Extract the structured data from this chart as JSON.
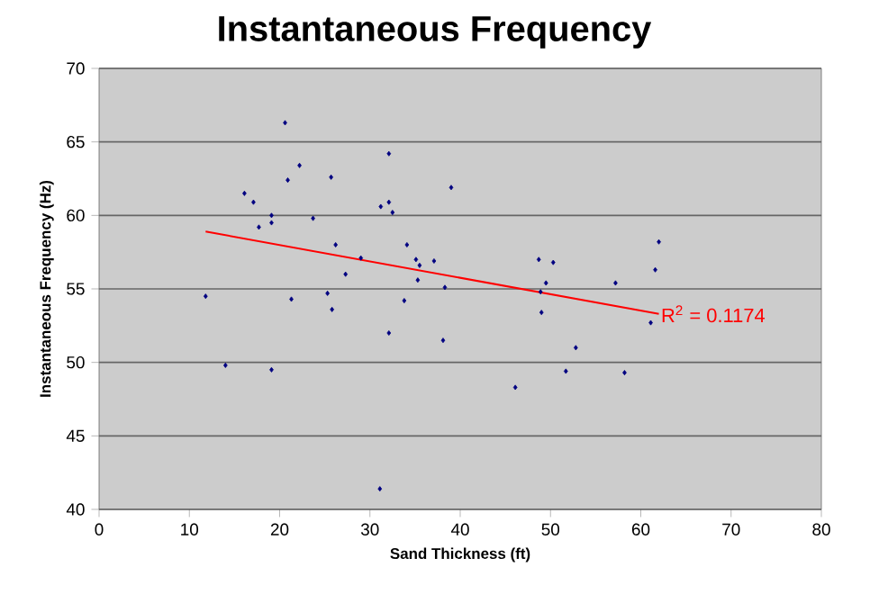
{
  "chart_data": {
    "type": "scatter",
    "title": "Instantaneous Frequency",
    "xlabel": "Sand Thickness (ft)",
    "ylabel": "Instantaneous Frequency (Hz)",
    "xlim": [
      0,
      80
    ],
    "xticks": [
      0,
      10,
      20,
      30,
      40,
      50,
      60,
      70,
      80
    ],
    "ylim": [
      40,
      70
    ],
    "yticks": [
      40,
      45,
      50,
      55,
      60,
      65,
      70
    ],
    "grid": "y",
    "series": [
      {
        "marker": "diamond",
        "color": "#000080",
        "x": [
          20.6,
          32.1,
          22.2,
          20.9,
          25.7,
          39.0,
          16.1,
          17.1,
          31.2,
          32.1,
          32.5,
          19.1,
          23.7,
          19.1,
          17.7,
          26.2,
          34.1,
          29.0,
          35.1,
          37.1,
          35.5,
          27.3,
          35.3,
          38.3,
          11.8,
          21.3,
          25.3,
          33.8,
          25.8,
          32.1,
          38.1,
          14.0,
          19.1,
          31.1,
          48.7,
          50.3,
          49.5,
          48.9,
          49.0,
          62.0,
          61.6,
          57.2,
          61.1,
          52.8,
          51.7,
          58.2,
          46.1
        ],
        "values": [
          66.3,
          64.2,
          63.4,
          62.4,
          62.6,
          61.9,
          61.5,
          60.9,
          60.6,
          60.9,
          60.2,
          60.0,
          59.8,
          59.5,
          59.2,
          58.0,
          58.0,
          57.1,
          57.0,
          56.9,
          56.6,
          56.0,
          55.6,
          55.1,
          54.5,
          54.3,
          54.7,
          54.2,
          53.6,
          52.0,
          51.5,
          49.8,
          49.5,
          41.4,
          57.0,
          56.8,
          55.4,
          54.8,
          53.4,
          58.2,
          56.3,
          55.4,
          52.7,
          51.0,
          49.4,
          49.3,
          48.3
        ]
      },
      {
        "type": "line",
        "marker": "none",
        "color": "#ff0000",
        "x": [
          11.8,
          62.0
        ],
        "values": [
          58.9,
          53.3
        ]
      }
    ],
    "annotations": [
      {
        "text": "R$^{2}$ = 0.1174",
        "x": 62.0,
        "y": 53.3
      }
    ]
  }
}
